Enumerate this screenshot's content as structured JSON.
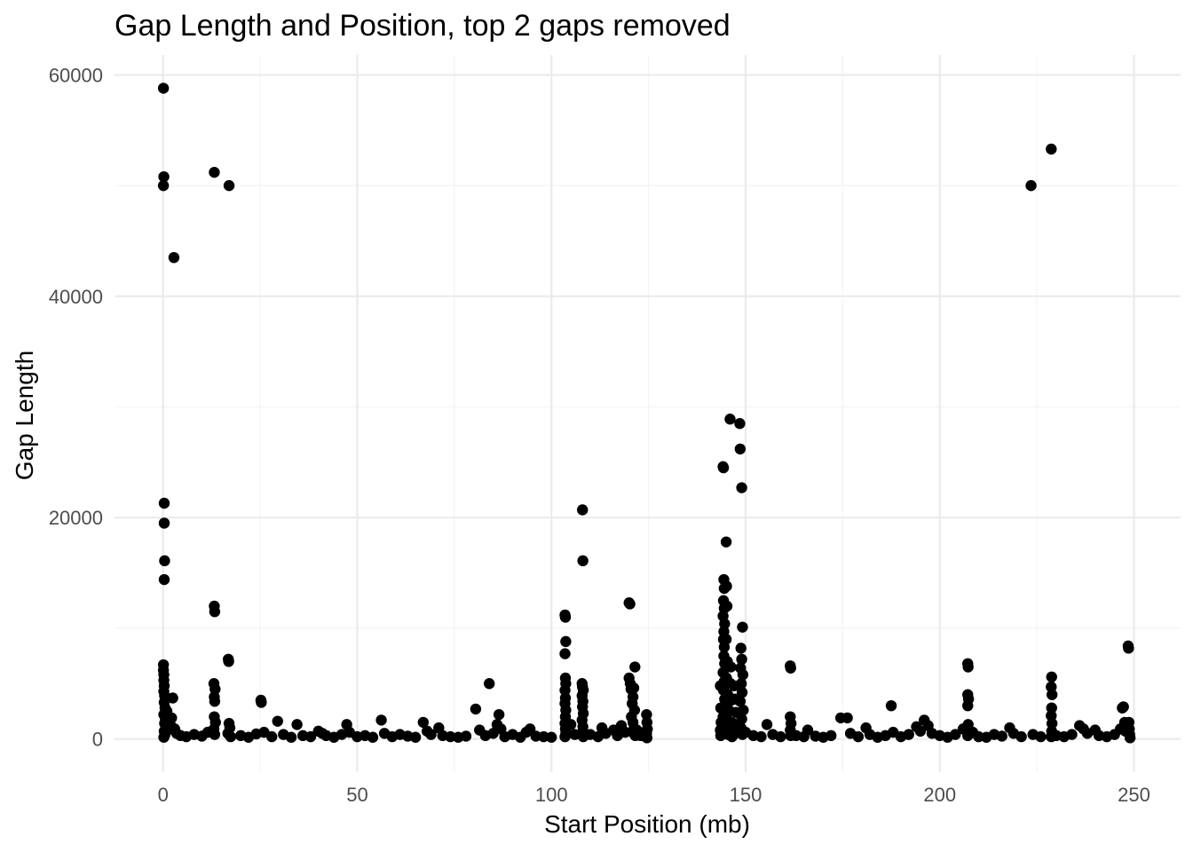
{
  "chart_data": {
    "type": "scatter",
    "title": "Gap Length and Position, top 2 gaps removed",
    "xlabel": "Start Position (mb)",
    "ylabel": "Gap Length",
    "xlim": [
      -12.5,
      262
    ],
    "ylim": [
      -3000,
      61800
    ],
    "x_ticks": [
      0,
      50,
      100,
      150,
      200,
      250
    ],
    "y_ticks": [
      0,
      20000,
      40000,
      60000
    ],
    "x_tick_labels": [
      "0",
      "50",
      "100",
      "150",
      "200",
      "250"
    ],
    "y_tick_labels": [
      "0",
      "20000",
      "40000",
      "60000"
    ],
    "grid": true,
    "legend": "none",
    "point_color": "#000000",
    "points": [
      [
        0.1,
        58800
      ],
      [
        0.2,
        50800
      ],
      [
        0.1,
        50000
      ],
      [
        2.8,
        43500
      ],
      [
        13.2,
        51200
      ],
      [
        17.0,
        50000
      ],
      [
        0.3,
        21300
      ],
      [
        0.3,
        19500
      ],
      [
        0.4,
        16100
      ],
      [
        0.3,
        14400
      ],
      [
        0.1,
        6700
      ],
      [
        0.1,
        6200
      ],
      [
        0.2,
        5800
      ],
      [
        0.2,
        5300
      ],
      [
        0.3,
        4800
      ],
      [
        0.2,
        4300
      ],
      [
        0.4,
        3900
      ],
      [
        0.3,
        3300
      ],
      [
        0.5,
        2800
      ],
      [
        0.2,
        2200
      ],
      [
        0.6,
        1800
      ],
      [
        0.4,
        1400
      ],
      [
        0.7,
        1000
      ],
      [
        0.3,
        700
      ],
      [
        0.5,
        400
      ],
      [
        0.2,
        150
      ],
      [
        1.0,
        2500
      ],
      [
        1.5,
        1800
      ],
      [
        2.0,
        1200
      ],
      [
        2.5,
        3700
      ],
      [
        3.0,
        900
      ],
      [
        3.5,
        500
      ],
      [
        2.2,
        1900
      ],
      [
        1.2,
        800
      ],
      [
        4.5,
        300
      ],
      [
        6.0,
        200
      ],
      [
        8.0,
        400
      ],
      [
        10.0,
        250
      ],
      [
        11.5,
        600
      ],
      [
        13.2,
        12000
      ],
      [
        13.3,
        11500
      ],
      [
        13.1,
        5000
      ],
      [
        13.4,
        4500
      ],
      [
        13.2,
        3800
      ],
      [
        13.3,
        3400
      ],
      [
        13.2,
        2000
      ],
      [
        13.5,
        1500
      ],
      [
        13.1,
        900
      ],
      [
        13.3,
        400
      ],
      [
        16.8,
        7200
      ],
      [
        16.9,
        7000
      ],
      [
        17.0,
        1400
      ],
      [
        17.2,
        1000
      ],
      [
        16.7,
        500
      ],
      [
        17.4,
        200
      ],
      [
        20.0,
        300
      ],
      [
        22.0,
        150
      ],
      [
        24.0,
        450
      ],
      [
        25.2,
        3500
      ],
      [
        25.3,
        3300
      ],
      [
        26.0,
        600
      ],
      [
        28.0,
        200
      ],
      [
        29.5,
        1600
      ],
      [
        31.0,
        400
      ],
      [
        33.0,
        150
      ],
      [
        34.5,
        1300
      ],
      [
        36.0,
        300
      ],
      [
        38.0,
        200
      ],
      [
        40.0,
        700
      ],
      [
        41.0,
        500
      ],
      [
        42.0,
        300
      ],
      [
        44.0,
        150
      ],
      [
        46.0,
        400
      ],
      [
        47.3,
        1300
      ],
      [
        48.0,
        600
      ],
      [
        50.0,
        200
      ],
      [
        52.0,
        300
      ],
      [
        54.0,
        150
      ],
      [
        56.2,
        1700
      ],
      [
        57.0,
        500
      ],
      [
        59.0,
        200
      ],
      [
        61.0,
        400
      ],
      [
        63.0,
        250
      ],
      [
        65.0,
        150
      ],
      [
        67.0,
        1500
      ],
      [
        68.0,
        700
      ],
      [
        69.0,
        400
      ],
      [
        71.0,
        1000
      ],
      [
        72.0,
        300
      ],
      [
        74.0,
        200
      ],
      [
        76.0,
        150
      ],
      [
        78.0,
        250
      ],
      [
        80.5,
        2700
      ],
      [
        81.5,
        800
      ],
      [
        83.0,
        300
      ],
      [
        84.0,
        5000
      ],
      [
        85.0,
        500
      ],
      [
        86.0,
        1300
      ],
      [
        86.5,
        2200
      ],
      [
        87.0,
        900
      ],
      [
        88.0,
        200
      ],
      [
        90.0,
        400
      ],
      [
        92.0,
        150
      ],
      [
        93.5,
        600
      ],
      [
        94.5,
        900
      ],
      [
        96.0,
        250
      ],
      [
        98.0,
        200
      ],
      [
        100.0,
        150
      ],
      [
        103.5,
        11200
      ],
      [
        103.6,
        11000
      ],
      [
        103.7,
        8800
      ],
      [
        103.5,
        7700
      ],
      [
        103.6,
        5500
      ],
      [
        103.7,
        5000
      ],
      [
        103.5,
        4400
      ],
      [
        103.6,
        3700
      ],
      [
        103.5,
        3200
      ],
      [
        103.7,
        2600
      ],
      [
        103.6,
        2000
      ],
      [
        103.5,
        1400
      ],
      [
        103.6,
        900
      ],
      [
        103.7,
        500
      ],
      [
        103.5,
        200
      ],
      [
        105.0,
        1300
      ],
      [
        106.0,
        400
      ],
      [
        108.0,
        20700
      ],
      [
        108.1,
        16100
      ],
      [
        107.9,
        5000
      ],
      [
        108.0,
        4700
      ],
      [
        108.2,
        4400
      ],
      [
        107.9,
        3900
      ],
      [
        108.1,
        3400
      ],
      [
        108.0,
        2900
      ],
      [
        108.2,
        2300
      ],
      [
        107.9,
        1700
      ],
      [
        108.1,
        1100
      ],
      [
        108.0,
        600
      ],
      [
        108.2,
        200
      ],
      [
        110.0,
        400
      ],
      [
        112.0,
        200
      ],
      [
        113.0,
        1000
      ],
      [
        114.0,
        500
      ],
      [
        116.0,
        800
      ],
      [
        117.0,
        300
      ],
      [
        118.0,
        1200
      ],
      [
        119.0,
        600
      ],
      [
        120.0,
        12300
      ],
      [
        120.2,
        12200
      ],
      [
        120.0,
        5500
      ],
      [
        120.3,
        5000
      ],
      [
        120.5,
        4500
      ],
      [
        121.0,
        3800
      ],
      [
        120.8,
        3200
      ],
      [
        121.5,
        6500
      ],
      [
        121.2,
        4600
      ],
      [
        121.4,
        2600
      ],
      [
        120.6,
        2000
      ],
      [
        121.0,
        1500
      ],
      [
        121.3,
        1000
      ],
      [
        120.9,
        600
      ],
      [
        121.6,
        300
      ],
      [
        122.0,
        800
      ],
      [
        123.0,
        300
      ],
      [
        124.5,
        2200
      ],
      [
        124.6,
        1500
      ],
      [
        124.7,
        900
      ],
      [
        124.5,
        500
      ],
      [
        124.6,
        100
      ],
      [
        143.5,
        4800
      ],
      [
        143.6,
        2800
      ],
      [
        143.7,
        1500
      ],
      [
        143.5,
        800
      ],
      [
        143.6,
        300
      ],
      [
        144.2,
        24600
      ],
      [
        144.3,
        24500
      ],
      [
        144.4,
        14400
      ],
      [
        144.5,
        13600
      ],
      [
        144.3,
        12500
      ],
      [
        144.5,
        11800
      ],
      [
        144.2,
        11100
      ],
      [
        144.6,
        10400
      ],
      [
        144.4,
        9700
      ],
      [
        144.3,
        9000
      ],
      [
        144.5,
        8300
      ],
      [
        144.4,
        7500
      ],
      [
        144.6,
        6800
      ],
      [
        144.2,
        6000
      ],
      [
        144.5,
        5200
      ],
      [
        144.3,
        4400
      ],
      [
        144.6,
        3600
      ],
      [
        144.4,
        2800
      ],
      [
        144.2,
        2000
      ],
      [
        144.5,
        1200
      ],
      [
        144.3,
        500
      ],
      [
        145.0,
        17800
      ],
      [
        145.1,
        13800
      ],
      [
        145.2,
        12000
      ],
      [
        145.0,
        9000
      ],
      [
        145.3,
        7000
      ],
      [
        145.1,
        5500
      ],
      [
        145.4,
        4000
      ],
      [
        145.2,
        3000
      ],
      [
        145.0,
        2000
      ],
      [
        145.3,
        1000
      ],
      [
        145.5,
        400
      ],
      [
        146.0,
        28900
      ],
      [
        146.2,
        6500
      ],
      [
        146.1,
        5000
      ],
      [
        146.3,
        3500
      ],
      [
        146.0,
        2500
      ],
      [
        146.4,
        1500
      ],
      [
        146.2,
        700
      ],
      [
        146.5,
        200
      ],
      [
        147.0,
        4800
      ],
      [
        147.2,
        3600
      ],
      [
        147.5,
        2400
      ],
      [
        147.8,
        1200
      ],
      [
        147.3,
        500
      ],
      [
        148.5,
        28500
      ],
      [
        148.6,
        26200
      ],
      [
        149.0,
        22700
      ],
      [
        149.2,
        10100
      ],
      [
        148.8,
        8200
      ],
      [
        149.0,
        7200
      ],
      [
        148.7,
        6400
      ],
      [
        149.3,
        5800
      ],
      [
        148.9,
        5000
      ],
      [
        149.1,
        4200
      ],
      [
        148.6,
        3400
      ],
      [
        149.4,
        2600
      ],
      [
        149.0,
        1800
      ],
      [
        148.8,
        1000
      ],
      [
        149.2,
        400
      ],
      [
        150.0,
        600
      ],
      [
        152.0,
        300
      ],
      [
        154.0,
        200
      ],
      [
        155.5,
        1300
      ],
      [
        157.0,
        400
      ],
      [
        159.0,
        200
      ],
      [
        161.5,
        6600
      ],
      [
        161.6,
        6400
      ],
      [
        161.5,
        2000
      ],
      [
        161.7,
        1400
      ],
      [
        161.5,
        800
      ],
      [
        161.6,
        300
      ],
      [
        163.0,
        300
      ],
      [
        165.0,
        200
      ],
      [
        166.0,
        800
      ],
      [
        168.0,
        250
      ],
      [
        170.0,
        150
      ],
      [
        172.0,
        300
      ],
      [
        174.5,
        1900
      ],
      [
        176.2,
        1900
      ],
      [
        177.0,
        500
      ],
      [
        179.0,
        200
      ],
      [
        181.0,
        1000
      ],
      [
        182.0,
        400
      ],
      [
        184.0,
        150
      ],
      [
        186.0,
        300
      ],
      [
        187.5,
        3000
      ],
      [
        188.0,
        600
      ],
      [
        190.0,
        200
      ],
      [
        192.0,
        400
      ],
      [
        194.0,
        1100
      ],
      [
        195.0,
        700
      ],
      [
        196.0,
        1700
      ],
      [
        197.0,
        1200
      ],
      [
        198.0,
        500
      ],
      [
        200.0,
        300
      ],
      [
        202.0,
        150
      ],
      [
        204.0,
        400
      ],
      [
        206.0,
        900
      ],
      [
        207.2,
        6800
      ],
      [
        207.3,
        6500
      ],
      [
        207.2,
        4000
      ],
      [
        207.4,
        3600
      ],
      [
        207.2,
        3000
      ],
      [
        207.3,
        1300
      ],
      [
        207.5,
        800
      ],
      [
        207.2,
        300
      ],
      [
        208.5,
        600
      ],
      [
        210.0,
        200
      ],
      [
        212.0,
        150
      ],
      [
        214.0,
        400
      ],
      [
        216.0,
        250
      ],
      [
        218.0,
        1000
      ],
      [
        219.0,
        500
      ],
      [
        221.0,
        200
      ],
      [
        223.5,
        50000
      ],
      [
        224.0,
        400
      ],
      [
        226.0,
        200
      ],
      [
        228.7,
        53300
      ],
      [
        228.8,
        5600
      ],
      [
        228.7,
        4700
      ],
      [
        228.9,
        4000
      ],
      [
        228.8,
        2800
      ],
      [
        228.7,
        2100
      ],
      [
        228.9,
        1400
      ],
      [
        228.8,
        700
      ],
      [
        228.7,
        200
      ],
      [
        230.0,
        300
      ],
      [
        232.0,
        200
      ],
      [
        234.0,
        400
      ],
      [
        236.0,
        1200
      ],
      [
        237.0,
        900
      ],
      [
        238.0,
        500
      ],
      [
        240.0,
        800
      ],
      [
        241.0,
        300
      ],
      [
        243.0,
        200
      ],
      [
        245.0,
        400
      ],
      [
        246.5,
        900
      ],
      [
        247.0,
        2800
      ],
      [
        247.3,
        2900
      ],
      [
        247.6,
        1500
      ],
      [
        247.8,
        700
      ],
      [
        248.5,
        8400
      ],
      [
        248.6,
        8200
      ],
      [
        248.7,
        1500
      ],
      [
        248.8,
        900
      ],
      [
        248.9,
        400
      ],
      [
        249.0,
        100
      ]
    ]
  }
}
